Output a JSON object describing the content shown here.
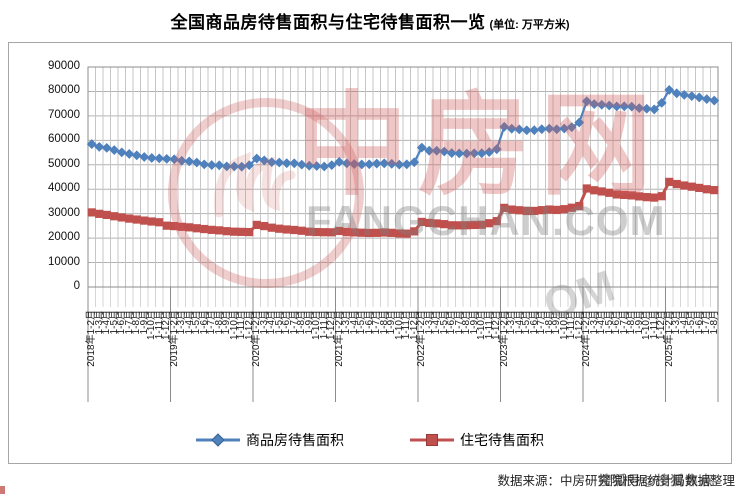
{
  "title": {
    "text": "全国商品房待售面积与住宅待售面积一览",
    "unit": "(单位: 万平方米)"
  },
  "legend": [
    {
      "label": "商品房待售面积",
      "color": "#4F81BD",
      "marker": "diamond"
    },
    {
      "label": "住宅待售面积",
      "color": "#C0504D",
      "marker": "square"
    }
  ],
  "footer": {
    "source": "数据来源：中房研究院根据统计局数据整理",
    "overlay_watermark": "搜狐号@搜狐焦点"
  },
  "watermark": {
    "logo_text": "中房网",
    "domain_text": "FANGCHAN.COM",
    "fragment_text": "OM",
    "color": "#D05C5A"
  },
  "chart_data": {
    "type": "line",
    "title": "全国商品房待售面积与住宅待售面积一览",
    "unit": "万平方米",
    "ylim": [
      0,
      90000
    ],
    "ytick_step": 10000,
    "yticks": [
      0,
      10000,
      20000,
      30000,
      40000,
      50000,
      60000,
      70000,
      80000,
      90000
    ],
    "grid": true,
    "legend_position": "bottom",
    "categories": [
      "2018年1-2月",
      "1-3月",
      "1-4月",
      "1-5月",
      "1-6月",
      "1-7月",
      "1-8月",
      "1-9月",
      "1-10月",
      "1-11月",
      "1-12月",
      "2019年1-2月",
      "1-3月",
      "1-4月",
      "1-5月",
      "1-6月",
      "1-7月",
      "1-8月",
      "1-9月",
      "1-10月",
      "1-11月",
      "1-12月",
      "2020年1-2月",
      "1-3月",
      "1-4月",
      "1-5月",
      "1-6月",
      "1-7月",
      "1-8月",
      "1-9月",
      "1-10月",
      "1-11月",
      "1-12月",
      "2021年1-2月",
      "1-3月",
      "1-4月",
      "1-5月",
      "1-6月",
      "1-7月",
      "1-8月",
      "1-9月",
      "1-10月",
      "1-11月",
      "1-12月",
      "2022年1-2月",
      "1-3月",
      "1-4月",
      "1-5月",
      "1-6月",
      "1-7月",
      "1-8月",
      "1-9月",
      "1-10月",
      "1-11月",
      "1-12月",
      "2023年1-2月",
      "1-3月",
      "1-4月",
      "1-5月",
      "1-6月",
      "1-7月",
      "1-8月",
      "1-9月",
      "1-10月",
      "1-11月",
      "1-12月",
      "2024年1-2月",
      "1-3月",
      "1-4月",
      "1-5月",
      "1-6月",
      "1-7月",
      "1-8月",
      "1-9月",
      "1-10月",
      "1-11月",
      "1-12月",
      "2025年1-2月",
      "1-3月",
      "1-4月",
      "1-5月",
      "1-6月",
      "1-7月",
      "1-8月"
    ],
    "series": [
      {
        "name": "商品房待售面积",
        "color": "#4F81BD",
        "marker": "diamond",
        "values": [
          58468,
          57329,
          56911,
          56010,
          55083,
          54428,
          53873,
          53191,
          52789,
          52627,
          52414,
          52251,
          51646,
          51380,
          50928,
          50162,
          49876,
          49784,
          49346,
          49323,
          49221,
          49821,
          52563,
          51779,
          51076,
          50928,
          50662,
          50602,
          50052,
          49606,
          49492,
          49287,
          49850,
          51208,
          50578,
          50305,
          50131,
          50208,
          50492,
          50588,
          50385,
          50073,
          50182,
          51023,
          57026,
          55756,
          55735,
          55433,
          54784,
          54655,
          54605,
          54703,
          54734,
          55203,
          56366,
          65528,
          64770,
          64487,
          64120,
          64159,
          64564,
          64795,
          64537,
          64835,
          65385,
          67295,
          75969,
          74833,
          74553,
          74256,
          73894,
          73926,
          73783,
          73177,
          72920,
          72645,
          75327,
          80609,
          79241,
          78599,
          78089,
          77536,
          76864,
          76273
        ]
      },
      {
        "name": "住宅待售面积",
        "color": "#C0504D",
        "marker": "square",
        "values": [
          30509,
          29925,
          29494,
          28945,
          28459,
          27981,
          27598,
          27165,
          26790,
          26474,
          25091,
          24911,
          24618,
          24404,
          24024,
          23710,
          23370,
          23165,
          22825,
          22629,
          22553,
          22473,
          25402,
          24911,
          24263,
          23843,
          23537,
          23324,
          23012,
          22616,
          22481,
          22414,
          22379,
          22919,
          22532,
          22344,
          22205,
          22109,
          22158,
          22298,
          22148,
          21881,
          21826,
          22761,
          26616,
          26211,
          25999,
          25708,
          25249,
          25222,
          25260,
          25389,
          25459,
          26089,
          26947,
          32371,
          31679,
          31394,
          31092,
          31122,
          31428,
          31693,
          31539,
          31836,
          32430,
          33119,
          40302,
          39568,
          39088,
          38544,
          37868,
          37672,
          37461,
          37064,
          36755,
          36574,
          37147,
          43002,
          42120,
          41518,
          41036,
          40539,
          39981,
          39636
        ]
      }
    ]
  }
}
